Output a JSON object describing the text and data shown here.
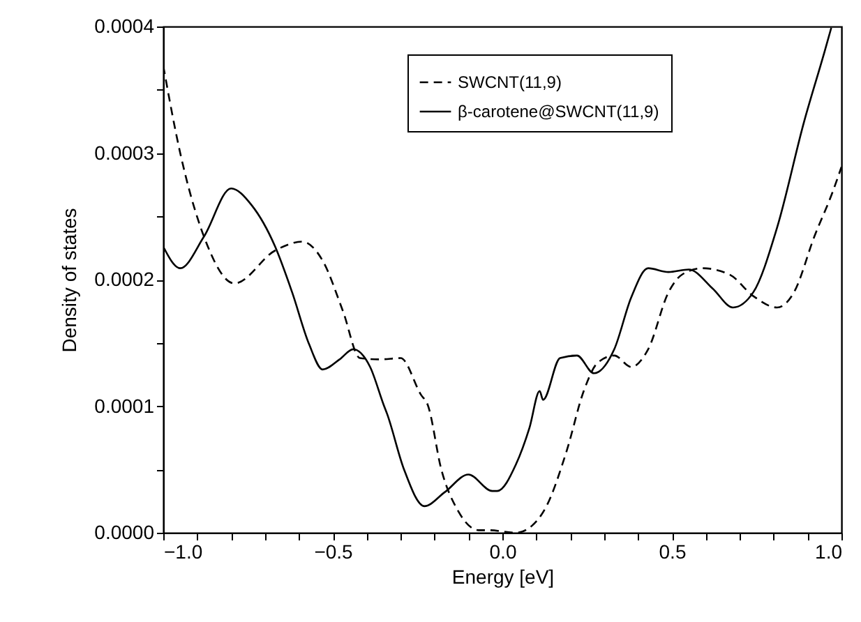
{
  "chart_data": {
    "type": "line",
    "xlabel": "Energy [eV]",
    "ylabel": "Density of states",
    "xlim": [
      -1.0,
      1.0
    ],
    "ylim": [
      0,
      0.0004
    ],
    "xticks": [
      {
        "value": -1.0,
        "label": "−1.0"
      },
      {
        "value": -0.9,
        "label": null
      },
      {
        "value": -0.8,
        "label": null
      },
      {
        "value": -0.7,
        "label": null
      },
      {
        "value": -0.6,
        "label": null
      },
      {
        "value": -0.5,
        "label": "−0.5"
      },
      {
        "value": -0.4,
        "label": null
      },
      {
        "value": -0.3,
        "label": null
      },
      {
        "value": -0.2,
        "label": null
      },
      {
        "value": -0.1,
        "label": null
      },
      {
        "value": 0,
        "label": "0.0"
      },
      {
        "value": 0.1,
        "label": null
      },
      {
        "value": 0.2,
        "label": null
      },
      {
        "value": 0.3,
        "label": null
      },
      {
        "value": 0.4,
        "label": null
      },
      {
        "value": 0.5,
        "label": "0.5"
      },
      {
        "value": 0.6,
        "label": null
      },
      {
        "value": 0.7,
        "label": null
      },
      {
        "value": 0.8,
        "label": null
      },
      {
        "value": 0.9,
        "label": null
      },
      {
        "value": 1.0,
        "label": "1.0"
      }
    ],
    "yticks": [
      {
        "value": 0,
        "label": "0.0000"
      },
      {
        "value": 5e-05,
        "label": null
      },
      {
        "value": 0.0001,
        "label": "0.0001"
      },
      {
        "value": 0.00015,
        "label": null
      },
      {
        "value": 0.0002,
        "label": "0.0002"
      },
      {
        "value": 0.00025,
        "label": null
      },
      {
        "value": 0.0003,
        "label": "0.0003"
      },
      {
        "value": 0.00035,
        "label": null
      },
      {
        "value": 0.0004,
        "label": "0.0004"
      }
    ],
    "grid": false,
    "legend": "top right",
    "marker": "none",
    "series": [
      {
        "name": "SWCNT(11,9)",
        "color": "#000000",
        "line_style": "dashed",
        "x": [
          -1.0,
          -0.95,
          -0.88,
          -0.79,
          -0.67,
          -0.59,
          -0.53,
          -0.47,
          -0.42,
          -0.36,
          -0.3,
          -0.24,
          -0.22,
          -0.18,
          -0.13,
          -0.07,
          -0.04,
          0.04,
          0.08,
          0.13,
          0.19,
          0.24,
          0.28,
          0.33,
          0.38,
          0.43,
          0.49,
          0.53,
          0.59,
          0.67,
          0.74,
          0.81,
          0.86,
          0.92,
          0.975,
          1.0
        ],
        "values": [
          0.000369,
          0.0003,
          0.000234,
          0.000197,
          0.000223,
          0.00023,
          0.000215,
          0.000175,
          0.000138,
          0.000137,
          0.000138,
          0.000109,
          0.000101,
          5e-05,
          1.7e-05,
          2e-06,
          2e-06,
          0.0,
          4e-06,
          2.1e-05,
          6.5e-05,
          0.000112,
          0.000134,
          0.00014,
          0.000131,
          0.000145,
          0.00019,
          0.000204,
          0.000209,
          0.000204,
          0.000187,
          0.000178,
          0.00019,
          0.000234,
          0.00027,
          0.000289
        ]
      },
      {
        "name": "β-carotene@SWCNT(11,9)",
        "color": "#000000",
        "line_style": "solid",
        "x": [
          -1.0,
          -0.95,
          -0.88,
          -0.8,
          -0.74,
          -0.67,
          -0.62,
          -0.57,
          -0.53,
          -0.48,
          -0.44,
          -0.39,
          -0.35,
          -0.34,
          -0.29,
          -0.23,
          -0.17,
          -0.1,
          -0.03,
          -0.015,
          0.04,
          0.08,
          0.11,
          0.12,
          0.17,
          0.22,
          0.27,
          0.33,
          0.38,
          0.43,
          0.49,
          0.55,
          0.62,
          0.68,
          0.74,
          0.81,
          0.89,
          0.95,
          0.97
        ],
        "values": [
          0.000226,
          0.000209,
          0.000234,
          0.000272,
          0.000259,
          0.000226,
          0.00019,
          0.000149,
          0.000129,
          0.000137,
          0.000145,
          0.000131,
          0.000101,
          9.4e-05,
          5e-05,
          2.1e-05,
          3.2e-05,
          4.6e-05,
          3.3e-05,
          3.3e-05,
          5.4e-05,
          8.3e-05,
          0.000112,
          0.000105,
          0.000138,
          0.00014,
          0.000126,
          0.000145,
          0.000186,
          0.000209,
          0.000206,
          0.000208,
          0.000193,
          0.000178,
          0.00019,
          0.000241,
          0.000325,
          0.00038,
          0.000399
        ]
      }
    ]
  }
}
